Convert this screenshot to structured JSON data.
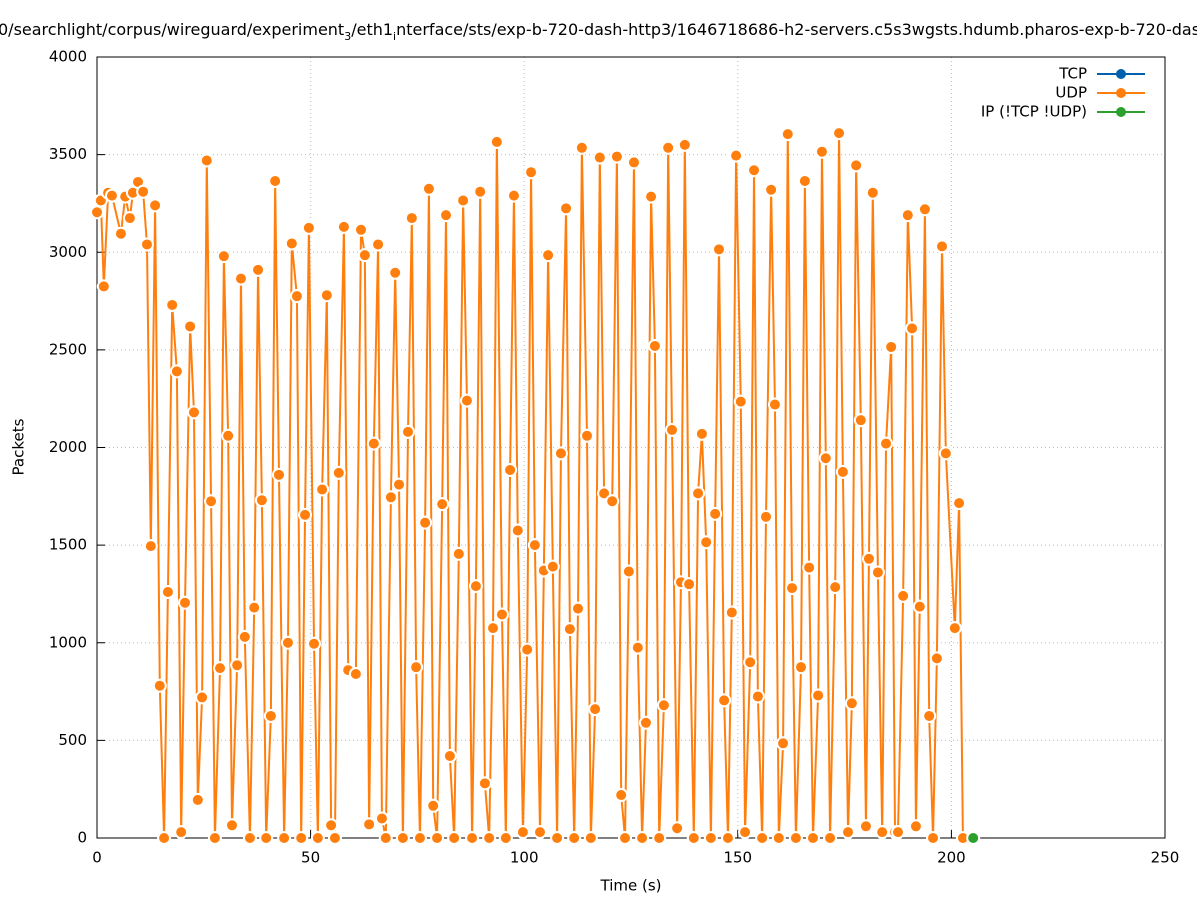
{
  "chart_data": {
    "type": "line",
    "title": [
      "0/searchlight/corpus/wireguard/experiment",
      "3",
      "/eth1",
      "i",
      "nterface/sts/exp-b-720-dash-http3/1646718686-h2-servers.c5s3wgsts.hdumb.pharos-exp-b-720-das"
    ],
    "x_label": "Time (s)",
    "y_label": "Packets",
    "xlim": [
      0,
      250
    ],
    "xticks": [
      0,
      50,
      100,
      150,
      200,
      250
    ],
    "ylim": [
      0,
      4000
    ],
    "yticks": [
      0,
      500,
      1000,
      1500,
      2000,
      2500,
      3000,
      3500,
      4000
    ],
    "grid": true,
    "legend": "top-right",
    "series": [
      {
        "name": "TCP",
        "color": "#0060ad",
        "x": [],
        "values": []
      },
      {
        "name": "UDP",
        "color": "#ff7f0e",
        "x": [
          0,
          0.9,
          1.6,
          2.6,
          3.5,
          5.6,
          6.6,
          7.7,
          8.4,
          9.6,
          10.8,
          11.7,
          12.6,
          13.6,
          14.7,
          15.7,
          16.6,
          17.6,
          18.7,
          19.7,
          20.6,
          21.8,
          22.7,
          23.6,
          24.6,
          25.7,
          26.7,
          27.6,
          28.8,
          29.7,
          30.7,
          31.6,
          32.8,
          33.7,
          34.6,
          35.8,
          36.8,
          37.7,
          38.6,
          39.6,
          40.7,
          41.7,
          42.6,
          43.8,
          44.7,
          45.6,
          46.8,
          47.8,
          48.7,
          49.6,
          50.8,
          51.7,
          52.7,
          53.8,
          54.8,
          55.7,
          56.6,
          57.8,
          58.8,
          60.6,
          61.8,
          62.7,
          63.7,
          64.8,
          65.8,
          66.7,
          67.6,
          68.8,
          69.8,
          70.7,
          71.6,
          72.8,
          73.7,
          74.7,
          75.6,
          76.8,
          77.7,
          78.7,
          79.6,
          80.8,
          81.7,
          82.6,
          83.6,
          84.7,
          85.7,
          86.6,
          87.8,
          88.7,
          89.7,
          90.8,
          91.8,
          92.7,
          93.6,
          94.8,
          95.7,
          96.7,
          97.6,
          98.5,
          99.7,
          100.7,
          101.6,
          102.5,
          103.7,
          104.6,
          105.6,
          106.7,
          107.7,
          108.6,
          109.8,
          110.7,
          111.7,
          112.6,
          113.5,
          114.7,
          115.6,
          116.6,
          117.7,
          118.7,
          120.6,
          121.7,
          122.7,
          123.6,
          124.5,
          125.7,
          126.6,
          127.6,
          128.5,
          129.7,
          130.6,
          131.6,
          132.7,
          133.7,
          134.6,
          135.8,
          136.7,
          137.6,
          138.6,
          139.7,
          140.7,
          141.6,
          142.6,
          143.7,
          144.7,
          145.6,
          146.8,
          147.7,
          148.6,
          149.6,
          150.7,
          151.7,
          152.9,
          153.8,
          154.7,
          155.7,
          156.6,
          157.8,
          158.7,
          159.6,
          160.6,
          161.7,
          162.7,
          163.6,
          164.8,
          165.7,
          166.7,
          167.6,
          168.8,
          169.7,
          170.6,
          171.6,
          172.8,
          173.7,
          174.6,
          175.8,
          176.7,
          177.7,
          178.8,
          180.0,
          180.7,
          181.6,
          182.8,
          183.8,
          184.7,
          185.9,
          186.8,
          187.5,
          188.7,
          189.8,
          190.8,
          191.7,
          192.6,
          193.8,
          194.8,
          195.7,
          196.6,
          197.8,
          198.7,
          200.8,
          201.8,
          202.7
        ],
        "values": [
          3205,
          3265,
          2825,
          3305,
          3290,
          3095,
          3285,
          3175,
          3305,
          3360,
          3310,
          3040,
          1495,
          3240,
          780,
          0,
          1260,
          2730,
          2390,
          30,
          1205,
          2620,
          2180,
          195,
          720,
          3470,
          1725,
          0,
          870,
          2980,
          2060,
          65,
          885,
          2865,
          1030,
          0,
          1180,
          2910,
          1730,
          0,
          625,
          3365,
          1860,
          0,
          1000,
          3045,
          2775,
          0,
          1655,
          3125,
          995,
          0,
          1785,
          2780,
          65,
          0,
          1870,
          3130,
          860,
          840,
          3115,
          2985,
          70,
          2020,
          3040,
          100,
          0,
          1745,
          2895,
          1810,
          0,
          2080,
          3175,
          875,
          0,
          1615,
          3325,
          165,
          0,
          1710,
          3190,
          420,
          0,
          1455,
          3265,
          2240,
          0,
          1290,
          3310,
          280,
          0,
          1075,
          3565,
          1145,
          0,
          1885,
          3290,
          1575,
          30,
          965,
          3410,
          1500,
          30,
          1370,
          2985,
          1390,
          0,
          1970,
          3225,
          1070,
          0,
          1175,
          3535,
          2060,
          0,
          660,
          3485,
          1765,
          1725,
          3490,
          220,
          0,
          1365,
          3460,
          975,
          0,
          590,
          3285,
          2520,
          0,
          680,
          3535,
          2090,
          50,
          1310,
          3550,
          1300,
          0,
          1765,
          2070,
          1515,
          0,
          1660,
          3015,
          705,
          0,
          1155,
          3495,
          2235,
          30,
          900,
          3420,
          725,
          0,
          1645,
          3320,
          2220,
          0,
          485,
          3605,
          1280,
          0,
          875,
          3365,
          1385,
          0,
          730,
          3515,
          1945,
          0,
          1285,
          3610,
          1875,
          30,
          690,
          3445,
          2140,
          60,
          1430,
          3305,
          1360,
          30,
          2020,
          2515,
          30,
          30,
          1240,
          3190,
          2610,
          60,
          1185,
          3220,
          625,
          0,
          920,
          3030,
          1970,
          1075,
          1715,
          0
        ]
      },
      {
        "name": "IP (!TCP  !UDP)",
        "color": "#2ca02c",
        "x": [
          205.1
        ],
        "values": [
          0
        ]
      }
    ]
  }
}
